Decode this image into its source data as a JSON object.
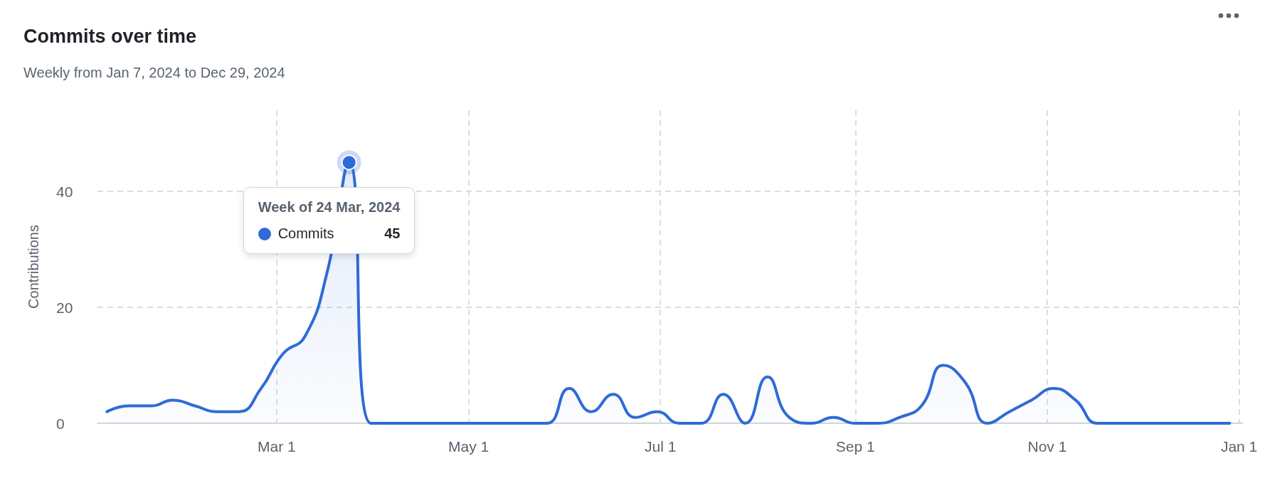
{
  "chart_data": {
    "type": "area",
    "title": "Commits over time",
    "subtitle": "Weekly from Jan 7, 2024 to Dec 29, 2024",
    "ylabel": "Contributions",
    "x": [
      "2024-01-07",
      "2024-01-14",
      "2024-01-21",
      "2024-01-28",
      "2024-02-04",
      "2024-02-11",
      "2024-02-18",
      "2024-02-25",
      "2024-03-03",
      "2024-03-10",
      "2024-03-17",
      "2024-03-24",
      "2024-03-31",
      "2024-04-07",
      "2024-04-14",
      "2024-04-21",
      "2024-04-28",
      "2024-05-05",
      "2024-05-12",
      "2024-05-19",
      "2024-05-26",
      "2024-06-02",
      "2024-06-09",
      "2024-06-16",
      "2024-06-23",
      "2024-06-30",
      "2024-07-07",
      "2024-07-14",
      "2024-07-21",
      "2024-07-28",
      "2024-08-04",
      "2024-08-11",
      "2024-08-18",
      "2024-08-25",
      "2024-09-01",
      "2024-09-08",
      "2024-09-15",
      "2024-09-22",
      "2024-09-29",
      "2024-10-06",
      "2024-10-13",
      "2024-10-20",
      "2024-10-27",
      "2024-11-03",
      "2024-11-10",
      "2024-11-17",
      "2024-11-24",
      "2024-12-01",
      "2024-12-08",
      "2024-12-15",
      "2024-12-22",
      "2024-12-29"
    ],
    "series": [
      {
        "name": "Commits",
        "color": "#2f6bd6",
        "values": [
          2,
          3,
          3,
          4,
          3,
          2,
          2,
          6,
          12,
          15,
          26,
          45,
          0,
          0,
          0,
          0,
          0,
          0,
          0,
          0,
          0,
          6,
          2,
          5,
          1,
          2,
          0,
          0,
          5,
          0,
          8,
          1,
          0,
          1,
          0,
          0,
          1,
          3,
          10,
          7,
          0,
          2,
          4,
          6,
          4,
          0,
          0,
          0,
          0,
          0,
          0,
          0
        ]
      }
    ],
    "annotations": [
      {
        "text": "Week of 24 Mar, 2024",
        "x": "2024-03-24",
        "y": 45
      },
      "45"
    ],
    "xlim": [
      "2024-01-04",
      "2025-01-02"
    ],
    "xticks": [
      {
        "value": "2024-03-01",
        "label": "Mar 1"
      },
      {
        "value": "2024-05-01",
        "label": "May 1"
      },
      {
        "value": "2024-07-01",
        "label": "Jul 1"
      },
      {
        "value": "2024-09-01",
        "label": "Sep 1"
      },
      {
        "value": "2024-11-01",
        "label": "Nov 1"
      },
      {
        "value": "2025-01-01",
        "label": "Jan 1"
      }
    ],
    "ylim": [
      0,
      54
    ],
    "yticks": [
      0,
      20,
      40
    ],
    "grid": true,
    "marker": "none",
    "line_style": "solid",
    "legend": "top left"
  }
}
